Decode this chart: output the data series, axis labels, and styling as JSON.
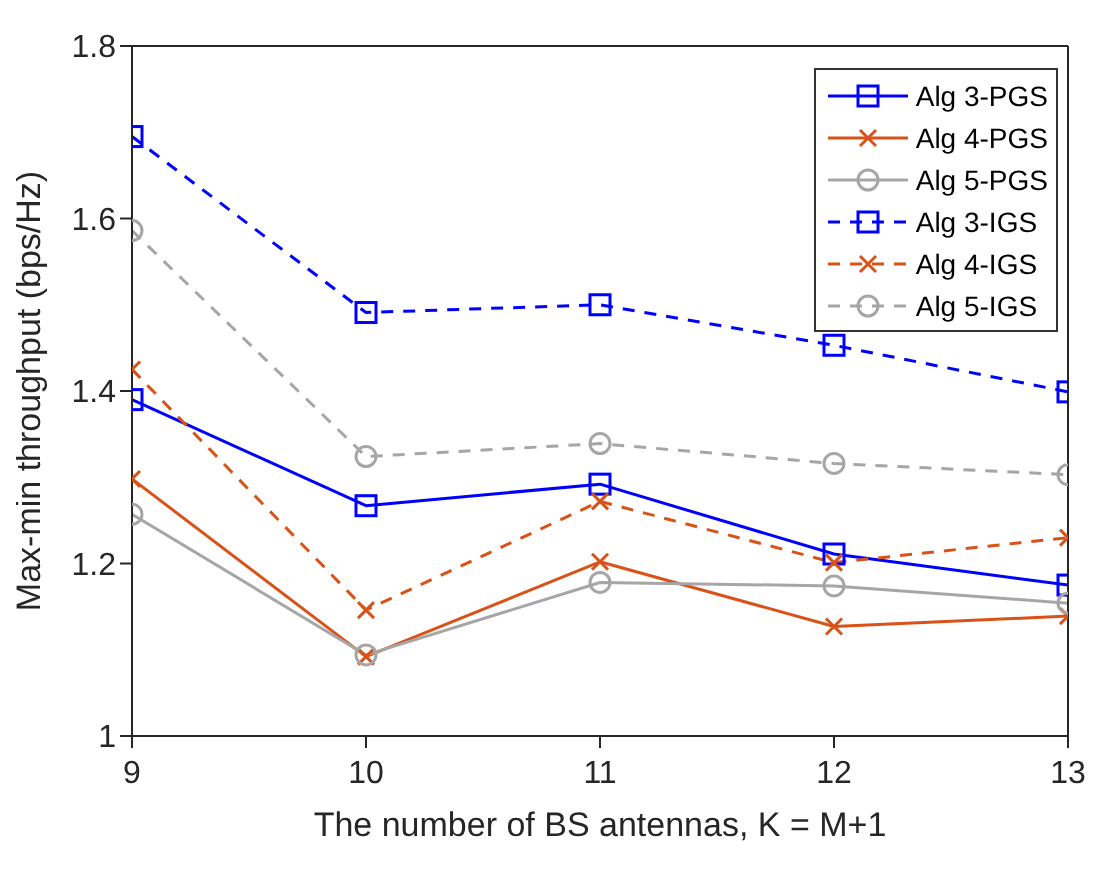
{
  "chart_data": {
    "type": "line",
    "xlabel": "The number of BS antennas, K = M+1",
    "ylabel": "Max-min throughput (bps/Hz)",
    "x": [
      9,
      10,
      11,
      12,
      13
    ],
    "xlim": [
      9,
      13
    ],
    "xticks": [
      9,
      10,
      11,
      12,
      13
    ],
    "ylim": [
      1,
      1.8
    ],
    "yticks": [
      1,
      1.2,
      1.4,
      1.6,
      1.8
    ],
    "grid": false,
    "legend": "top right",
    "series": [
      {
        "name": "Alg 3-PGS",
        "color": "#0000ff",
        "marker": "square",
        "line_style": "solid",
        "values": [
          1.39,
          1.267,
          1.292,
          1.211,
          1.175
        ]
      },
      {
        "name": "Alg 4-PGS",
        "color": "#d95319",
        "marker": "cross",
        "line_style": "solid",
        "values": [
          1.298,
          1.092,
          1.202,
          1.127,
          1.139
        ]
      },
      {
        "name": "Alg 5-PGS",
        "color": "#a6a6a6",
        "marker": "circle",
        "line_style": "solid",
        "values": [
          1.257,
          1.094,
          1.178,
          1.174,
          1.154
        ]
      },
      {
        "name": "Alg 3-IGS",
        "color": "#0000ff",
        "marker": "square",
        "line_style": "dashed",
        "values": [
          1.695,
          1.491,
          1.5,
          1.453,
          1.399
        ]
      },
      {
        "name": "Alg 4-IGS",
        "color": "#d95319",
        "marker": "cross",
        "line_style": "dashed",
        "values": [
          1.425,
          1.146,
          1.272,
          1.201,
          1.23
        ]
      },
      {
        "name": "Alg 5-IGS",
        "color": "#a6a6a6",
        "marker": "circle",
        "line_style": "dashed",
        "values": [
          1.586,
          1.324,
          1.339,
          1.316,
          1.303
        ]
      }
    ]
  }
}
